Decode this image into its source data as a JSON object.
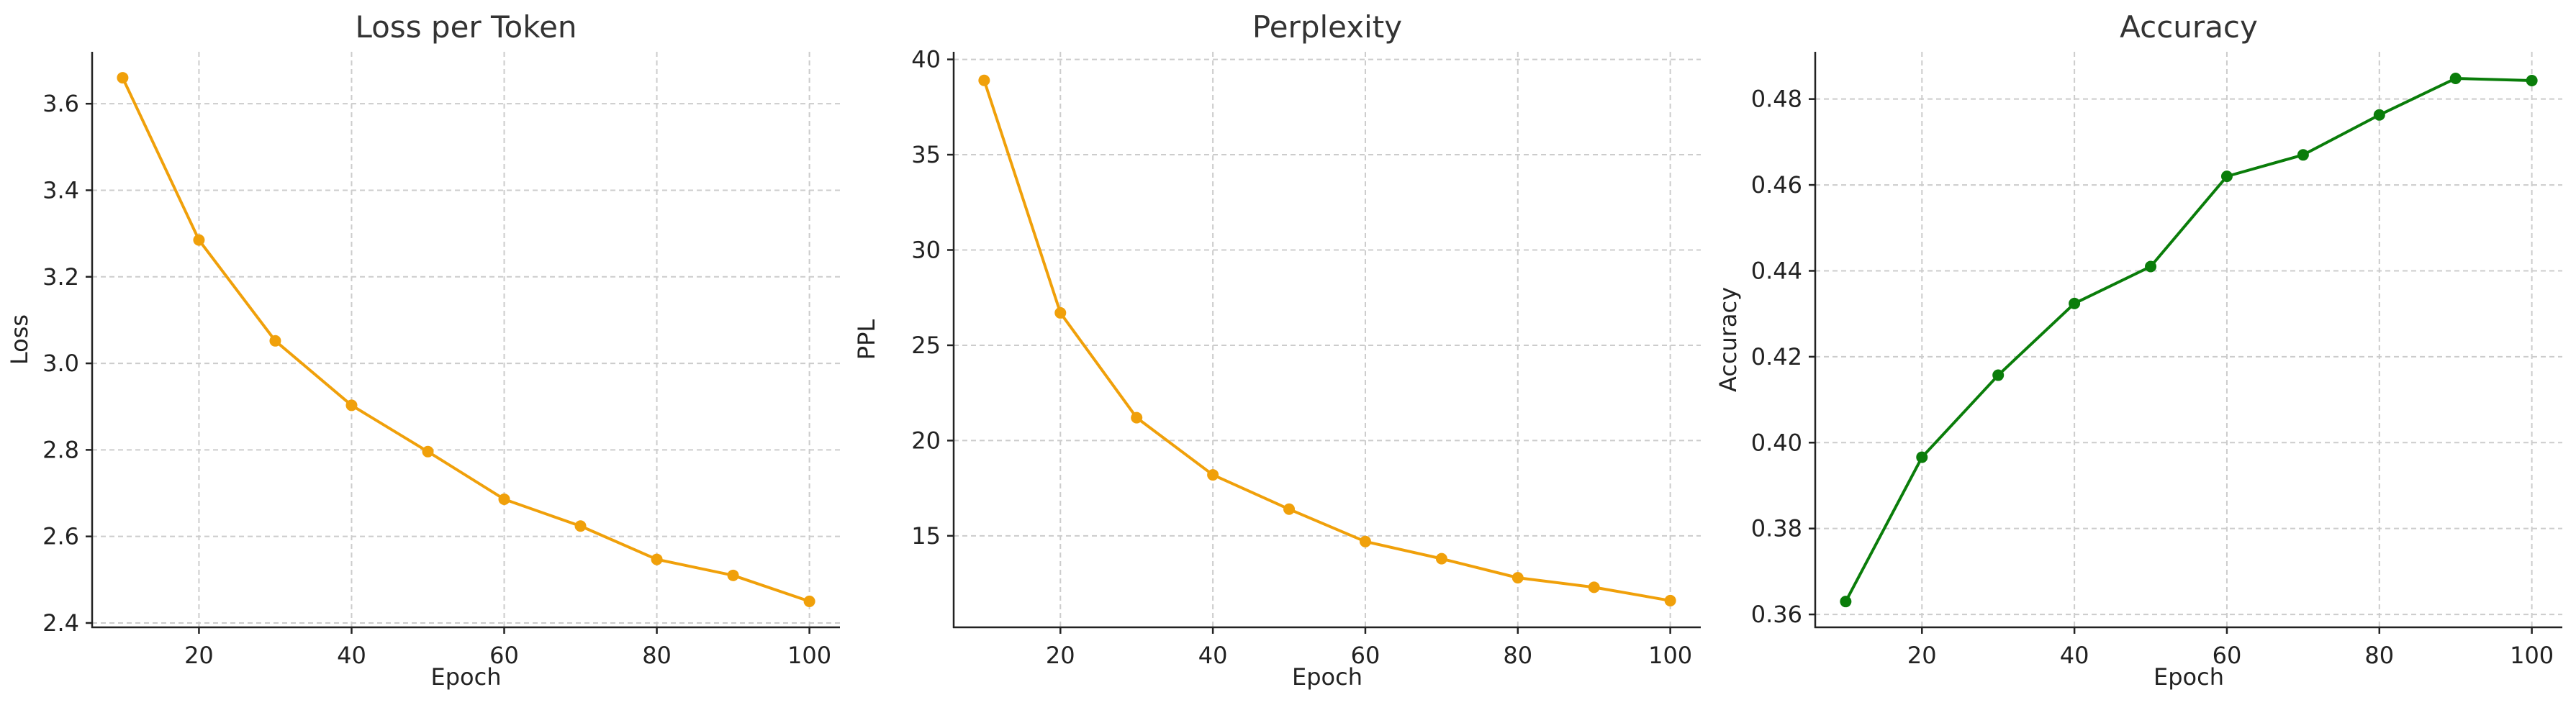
{
  "chart_data": [
    {
      "type": "line",
      "title": "Loss per Token",
      "xlabel": "Epoch",
      "ylabel": "Loss",
      "x": [
        10,
        20,
        30,
        40,
        50,
        60,
        70,
        80,
        90,
        100
      ],
      "xlim": [
        6,
        104
      ],
      "xticks": [
        20,
        40,
        60,
        80,
        100
      ],
      "ylim": [
        2.39,
        3.72
      ],
      "yticks": [
        2.4,
        2.6,
        2.8,
        3.0,
        3.2,
        3.4,
        3.6
      ],
      "ytick_labels": [
        "2.4",
        "2.6",
        "2.8",
        "3.0",
        "3.2",
        "3.4",
        "3.6"
      ],
      "grid": true,
      "series": [
        {
          "color": "#f0a00a",
          "values": [
            3.66,
            3.285,
            3.052,
            2.903,
            2.796,
            2.686,
            2.624,
            2.547,
            2.51,
            2.45
          ]
        }
      ]
    },
    {
      "type": "line",
      "title": "Perplexity",
      "xlabel": "Epoch",
      "ylabel": "PPL",
      "x": [
        10,
        20,
        30,
        40,
        50,
        60,
        70,
        80,
        90,
        100
      ],
      "xlim": [
        6,
        104
      ],
      "xticks": [
        20,
        40,
        60,
        80,
        100
      ],
      "ylim": [
        10.2,
        40.4
      ],
      "yticks": [
        15,
        20,
        25,
        30,
        35,
        40
      ],
      "ytick_labels": [
        "15",
        "20",
        "25",
        "30",
        "35",
        "40"
      ],
      "grid": true,
      "series": [
        {
          "color": "#f0a00a",
          "values": [
            38.9,
            26.7,
            21.2,
            18.2,
            16.4,
            14.7,
            13.8,
            12.8,
            12.3,
            11.6
          ]
        }
      ]
    },
    {
      "type": "line",
      "title": "Accuracy",
      "xlabel": "Epoch",
      "ylabel": "Accuracy",
      "x": [
        10,
        20,
        30,
        40,
        50,
        60,
        70,
        80,
        90,
        100
      ],
      "xlim": [
        6,
        104
      ],
      "xticks": [
        20,
        40,
        60,
        80,
        100
      ],
      "ylim": [
        0.357,
        0.491
      ],
      "yticks": [
        0.36,
        0.38,
        0.4,
        0.42,
        0.44,
        0.46,
        0.48
      ],
      "ytick_labels": [
        "0.36",
        "0.38",
        "0.40",
        "0.42",
        "0.44",
        "0.46",
        "0.48"
      ],
      "grid": true,
      "series": [
        {
          "color": "#0a7d0a",
          "values": [
            0.363,
            0.3966,
            0.4157,
            0.4324,
            0.441,
            0.462,
            0.467,
            0.4763,
            0.4848,
            0.4843
          ]
        }
      ]
    }
  ]
}
